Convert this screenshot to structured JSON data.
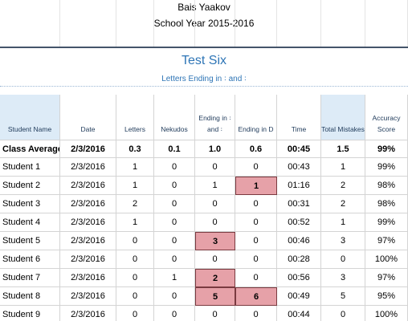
{
  "header": {
    "school": "Bais Yaakov",
    "year": "School Year 2015-2016"
  },
  "test": {
    "title": "Test Six",
    "subtitle": "Letters Ending in ꞉ and ꞉"
  },
  "table": {
    "columns": [
      "Student Name",
      "Date",
      "Letters",
      "Nekudos",
      "Ending in ꞉ and ꞉",
      "Ending in D",
      "Time",
      "Total Mistakes",
      "Accuracy Score"
    ],
    "rows": [
      [
        "Class Averages",
        "2/3/2016",
        "0.3",
        "0.1",
        "1.0",
        "0.6",
        "00:45",
        "1.5",
        "99%"
      ],
      [
        "Student 1",
        "2/3/2016",
        "1",
        "0",
        "0",
        "0",
        "00:43",
        "1",
        "99%"
      ],
      [
        "Student 2",
        "2/3/2016",
        "1",
        "0",
        "1",
        "1",
        "01:16",
        "2",
        "98%"
      ],
      [
        "Student 3",
        "2/3/2016",
        "2",
        "0",
        "0",
        "0",
        "00:31",
        "2",
        "98%"
      ],
      [
        "Student 4",
        "2/3/2016",
        "1",
        "0",
        "0",
        "0",
        "00:52",
        "1",
        "99%"
      ],
      [
        "Student 5",
        "2/3/2016",
        "0",
        "0",
        "3",
        "0",
        "00:46",
        "3",
        "97%"
      ],
      [
        "Student 6",
        "2/3/2016",
        "0",
        "0",
        "0",
        "0",
        "00:28",
        "0",
        "100%"
      ],
      [
        "Student 7",
        "2/3/2016",
        "0",
        "1",
        "2",
        "0",
        "00:56",
        "3",
        "97%"
      ],
      [
        "Student 8",
        "2/3/2016",
        "0",
        "0",
        "5",
        "6",
        "00:49",
        "5",
        "95%"
      ],
      [
        "Student 9",
        "2/3/2016",
        "0",
        "0",
        "0",
        "0",
        "00:44",
        "0",
        "100%"
      ]
    ]
  }
}
